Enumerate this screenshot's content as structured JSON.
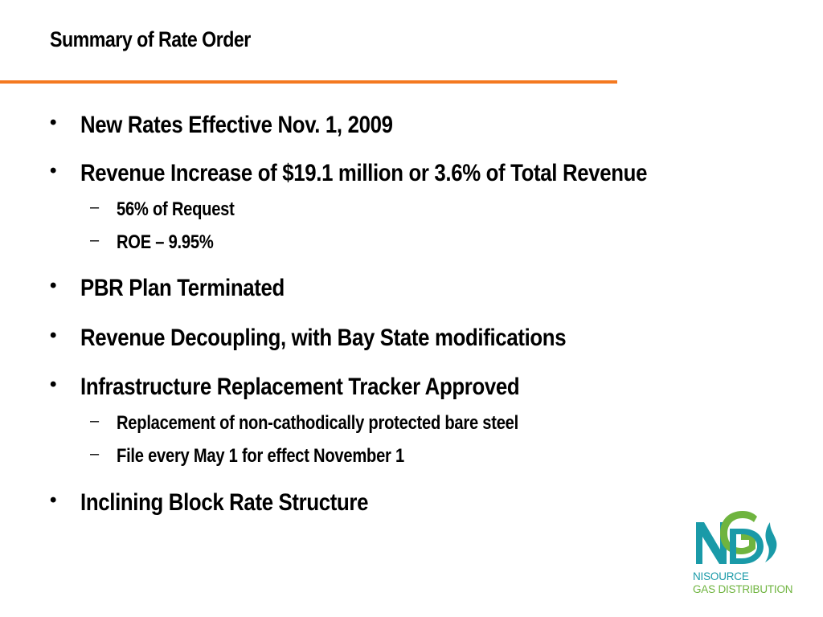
{
  "slide": {
    "title": "Summary of Rate Order",
    "accent_color": "#f47920",
    "bullets": [
      {
        "text": "New Rates Effective Nov. 1, 2009"
      },
      {
        "text": "Revenue Increase of $19.1 million or 3.6% of Total Revenue",
        "sub": [
          "56% of Request",
          "ROE – 9.95%"
        ]
      },
      {
        "text": "PBR Plan Terminated"
      },
      {
        "text": "Revenue Decoupling, with Bay State modifications"
      },
      {
        "text": "Infrastructure Replacement Tracker Approved",
        "sub": [
          "Replacement of non-cathodically protected bare steel",
          "File every May 1 for effect November 1"
        ]
      },
      {
        "text": "Inclining Block Rate Structure"
      }
    ],
    "bullet_symbol": "•",
    "sub_bullet_symbol": "–"
  },
  "logo": {
    "line1": "NISOURCE",
    "line2": "GAS DISTRIBUTION",
    "colors": {
      "teal": "#1a9aa8",
      "green": "#6fb43f"
    }
  }
}
